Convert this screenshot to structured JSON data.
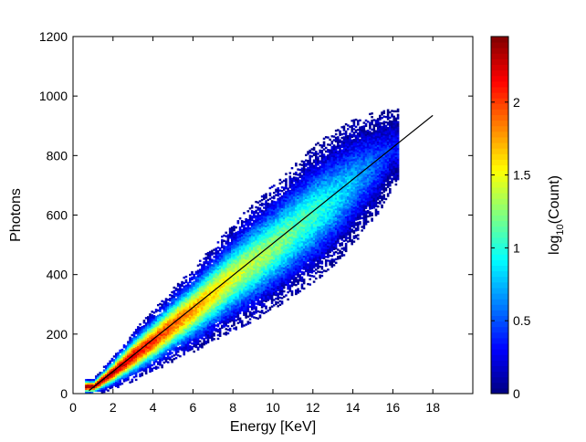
{
  "chart_data": {
    "type": "heatmap",
    "title": "",
    "xlabel": "Energy [KeV]",
    "ylabel": "Photons",
    "xlim": [
      0,
      20
    ],
    "ylim": [
      0,
      1200
    ],
    "x_ticks": [
      0,
      2,
      4,
      6,
      8,
      10,
      12,
      14,
      16,
      18
    ],
    "y_ticks": [
      0,
      200,
      400,
      600,
      800,
      1000,
      1200
    ],
    "grid": false,
    "fit_line": {
      "x": [
        0.8,
        18.0
      ],
      "y": [
        10,
        935
      ]
    },
    "density": {
      "description_of_ridge": "2D histogram of photon counts vs energy; counts highest near origin, decreasing along the ridge",
      "ridge_x": [
        1,
        2,
        3,
        4,
        5,
        6,
        7,
        8,
        9,
        10,
        11,
        12,
        13,
        14,
        15,
        16
      ],
      "ridge_y": [
        20,
        70,
        125,
        175,
        230,
        280,
        335,
        390,
        440,
        490,
        545,
        600,
        650,
        710,
        760,
        820
      ],
      "ridge_log10_count_peak": [
        2.4,
        2.3,
        2.2,
        2.05,
        1.9,
        1.75,
        1.6,
        1.45,
        1.35,
        1.25,
        1.15,
        1.05,
        0.9,
        0.75,
        0.55,
        0.35
      ],
      "spread_y_half_width": [
        15,
        30,
        45,
        55,
        65,
        75,
        85,
        95,
        105,
        110,
        115,
        120,
        120,
        110,
        95,
        70
      ]
    },
    "colorbar": {
      "label_prefix": "log",
      "label_subscript": "10",
      "label_suffix": "(Count)",
      "min": 0,
      "max": 2.45,
      "ticks": [
        "0",
        "0.5",
        "1",
        "1.5",
        "2"
      ],
      "tick_values": [
        0,
        0.5,
        1,
        1.5,
        2
      ],
      "colormap": "jet"
    }
  }
}
